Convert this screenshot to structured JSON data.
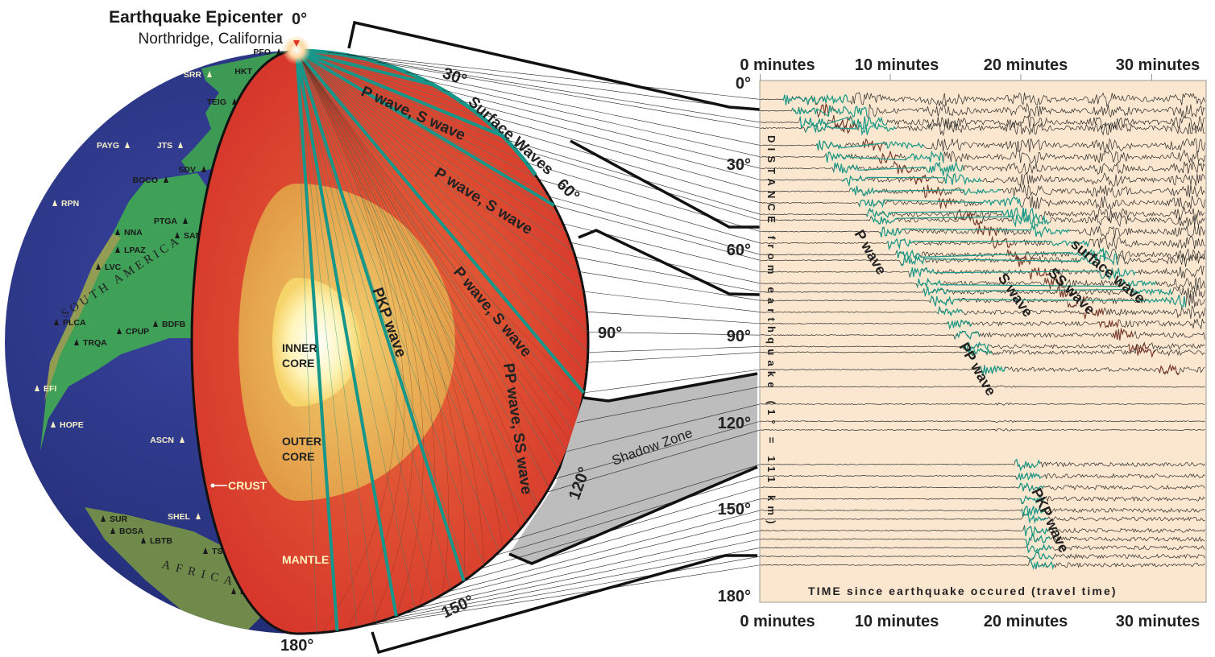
{
  "title": "Earthquake Epicenter",
  "subtitle": "Northridge, California",
  "globe": {
    "degree_labels": [
      "0°",
      "30°",
      "60°",
      "90°",
      "120°",
      "150°",
      "180°"
    ],
    "layer_labels": {
      "inner_core": [
        "INNER",
        "CORE"
      ],
      "outer_core": [
        "OUTER",
        "CORE"
      ],
      "mantle": "MANTLE",
      "crust": "CRUST"
    },
    "continents": {
      "south_america": "SOUTH AMERICA",
      "africa": "AFRICA"
    },
    "stations": [
      "PFO",
      "SRR",
      "HKT",
      "TEIG",
      "PAYG",
      "JTS",
      "SDV",
      "BOCO",
      "RPN",
      "PTGA",
      "NNA",
      "SAML",
      "LPAZ",
      "LVC",
      "PLCA",
      "CPUP",
      "BDFB",
      "TRQA",
      "EFI",
      "HOPE",
      "ASCN",
      "SHEL",
      "SUR",
      "BOSA",
      "LBTB",
      "TSUM",
      "LSZ"
    ],
    "wave_labels": {
      "pswave1": "P wave, S wave",
      "pswave2": "P wave, S wave",
      "pswave3": "P wave, S wave",
      "surface": "Surface Waves",
      "pkp": "PKP wave",
      "ppss": "PP wave, SS wave"
    },
    "shadow_zone": "Shadow Zone"
  },
  "seismogram": {
    "time_labels": [
      "0 minutes",
      "10 minutes",
      "20 minutes",
      "30 minutes"
    ],
    "distance_labels": [
      "0°",
      "30°",
      "60°",
      "90°",
      "120°",
      "150°",
      "180°"
    ],
    "y_axis_label": "DISTANCE from earthquake (1° = 111 km)",
    "x_axis_label": "TIME since earthquake occured (travel time)",
    "phase_labels": {
      "p": "P wave",
      "s": "S wave",
      "ss": "SS wave",
      "surface": "surface wave",
      "pp": "PP wave",
      "pkp": "PKP wave"
    },
    "trace_distances": [
      6,
      10,
      14,
      16,
      22,
      26,
      30,
      34,
      38,
      42,
      46,
      48,
      52,
      56,
      60,
      62,
      66,
      70,
      73,
      76,
      80,
      84,
      88,
      92,
      94,
      100,
      106,
      112,
      118,
      121,
      133,
      137,
      141,
      145,
      149,
      152,
      156,
      159,
      162,
      165,
      168
    ],
    "colors": {
      "p": "#1a9a88",
      "s": "#7b3a2c",
      "trace": "#2a2a2a",
      "panel": "#fbe7cf"
    }
  }
}
